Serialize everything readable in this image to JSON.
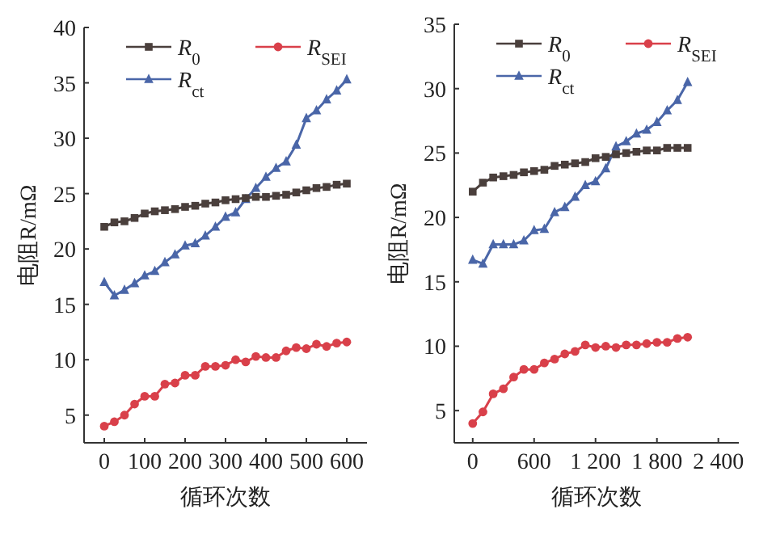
{
  "chart_data": [
    {
      "type": "line",
      "xlabel": "循环次数",
      "ylabel": "电阻R/mΩ",
      "legend": "top",
      "xlim": [
        -50,
        650
      ],
      "ylim": [
        2.5,
        40
      ],
      "xticks": [
        0,
        100,
        200,
        300,
        400,
        500,
        600
      ],
      "yticks": [
        5,
        10,
        15,
        20,
        25,
        30,
        35,
        40
      ],
      "x": [
        0,
        25,
        50,
        75,
        100,
        125,
        150,
        175,
        200,
        225,
        250,
        275,
        300,
        325,
        350,
        375,
        400,
        425,
        450,
        475,
        500,
        525,
        550,
        575,
        600
      ],
      "series": [
        {
          "name": "*R*$_{0}$",
          "color": "#4a3f3c",
          "marker": "square",
          "values": [
            22.0,
            22.4,
            22.5,
            22.8,
            23.2,
            23.4,
            23.5,
            23.6,
            23.8,
            23.9,
            24.1,
            24.2,
            24.4,
            24.5,
            24.6,
            24.7,
            24.7,
            24.8,
            24.9,
            25.1,
            25.3,
            25.5,
            25.6,
            25.8,
            25.9
          ]
        },
        {
          "name": "*R*$_{SEI}$",
          "color": "#d9404a",
          "marker": "circle",
          "values": [
            4.0,
            4.4,
            5.0,
            6.0,
            6.7,
            6.7,
            7.8,
            7.9,
            8.6,
            8.6,
            9.4,
            9.4,
            9.5,
            10.0,
            9.8,
            10.3,
            10.2,
            10.2,
            10.8,
            11.1,
            11.0,
            11.4,
            11.2,
            11.5,
            11.6
          ]
        },
        {
          "name": "*R*$_{ct}$",
          "color": "#4a66a8",
          "marker": "triangle",
          "values": [
            17.0,
            15.8,
            16.3,
            16.9,
            17.6,
            18.0,
            18.8,
            19.5,
            20.3,
            20.5,
            21.2,
            22.0,
            22.9,
            23.3,
            24.5,
            25.5,
            26.5,
            27.3,
            27.9,
            29.4,
            31.8,
            32.5,
            33.5,
            34.3,
            35.3
          ]
        }
      ]
    },
    {
      "type": "line",
      "xlabel": "循环次数",
      "ylabel": "电阻R/mΩ",
      "legend": "top",
      "xlim": [
        -180,
        2600
      ],
      "ylim": [
        2.5,
        35
      ],
      "xticks": [
        0,
        600,
        {
          "value": 1200,
          "label": "1 200"
        },
        {
          "value": 1800,
          "label": "1 800"
        },
        {
          "value": 2400,
          "label": "2 400"
        }
      ],
      "yticks": [
        5,
        10,
        15,
        20,
        25,
        30,
        35
      ],
      "x": [
        0,
        100,
        200,
        300,
        400,
        500,
        600,
        700,
        800,
        900,
        1000,
        1100,
        1200,
        1300,
        1400,
        1500,
        1600,
        1700,
        1800,
        1900,
        2000,
        2100
      ],
      "series": [
        {
          "name": "*R*$_{0}$",
          "color": "#4a3f3c",
          "marker": "square",
          "values": [
            22.0,
            22.7,
            23.1,
            23.2,
            23.3,
            23.5,
            23.6,
            23.7,
            24.0,
            24.1,
            24.2,
            24.3,
            24.6,
            24.7,
            24.9,
            25.0,
            25.1,
            25.2,
            25.2,
            25.4,
            25.4,
            25.4
          ]
        },
        {
          "name": "*R*$_{SEI}$",
          "color": "#d9404a",
          "marker": "circle",
          "values": [
            4.0,
            4.9,
            6.3,
            6.7,
            7.6,
            8.2,
            8.2,
            8.7,
            9.0,
            9.4,
            9.6,
            10.1,
            9.9,
            10.0,
            9.9,
            10.1,
            10.1,
            10.2,
            10.3,
            10.3,
            10.6,
            10.7
          ]
        },
        {
          "name": "*R*$_{ct}$",
          "color": "#4a66a8",
          "marker": "triangle",
          "values": [
            16.7,
            16.4,
            17.9,
            17.9,
            17.9,
            18.2,
            19.0,
            19.1,
            20.4,
            20.8,
            21.6,
            22.5,
            22.8,
            23.8,
            25.5,
            25.9,
            26.5,
            26.8,
            27.4,
            28.3,
            29.1,
            30.5
          ]
        }
      ]
    }
  ]
}
